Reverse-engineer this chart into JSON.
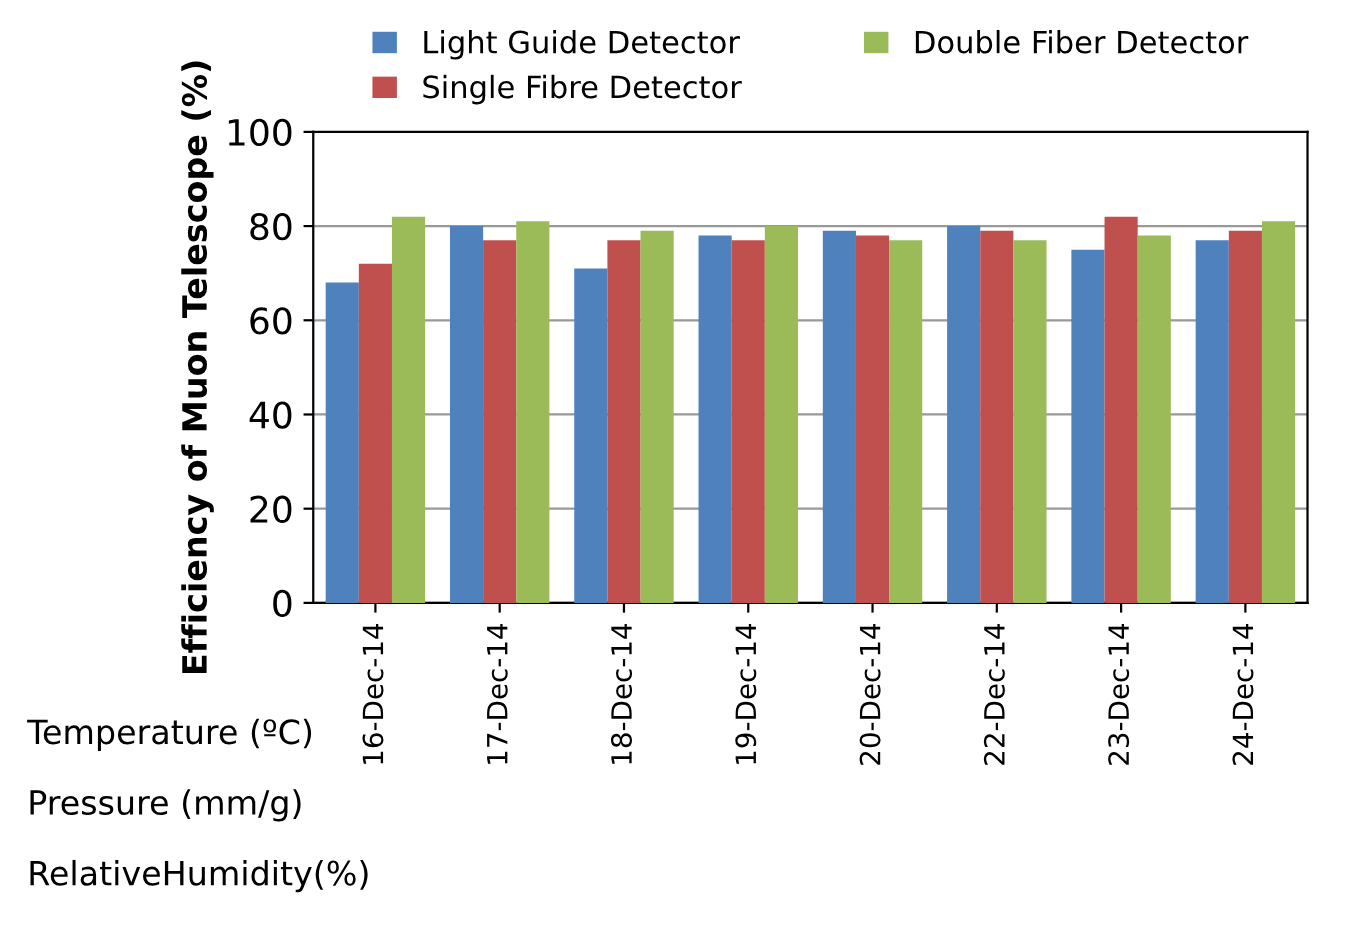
{
  "chart_data": {
    "type": "bar",
    "ylabel": "Efficiency of Muon Telescope (%)",
    "categories": [
      "16-Dec-14",
      "17-Dec-14",
      "18-Dec-14",
      "19-Dec-14",
      "20-Dec-14",
      "22-Dec-14",
      "23-Dec-14",
      "24-Dec-14"
    ],
    "series": [
      {
        "name": "Light Guide Detector",
        "color": "#4f81bd",
        "values": [
          68,
          80,
          71,
          78,
          79,
          80,
          75,
          77
        ]
      },
      {
        "name": "Single Fibre Detector",
        "color": "#c0504d",
        "values": [
          72,
          77,
          77,
          77,
          78,
          79,
          82,
          79
        ]
      },
      {
        "name": "Double Fiber Detector",
        "color": "#9bbb59",
        "values": [
          82,
          81,
          79,
          80,
          77,
          77,
          78,
          81
        ]
      }
    ],
    "ylim": [
      0,
      100
    ],
    "yticks": [
      0,
      20,
      40,
      60,
      80,
      100
    ],
    "grid": "y",
    "legend": "top",
    "annotations": [
      "Temperature (ºC)",
      "Pressure (mm/g)",
      "RelativeHumidity(%)"
    ]
  }
}
